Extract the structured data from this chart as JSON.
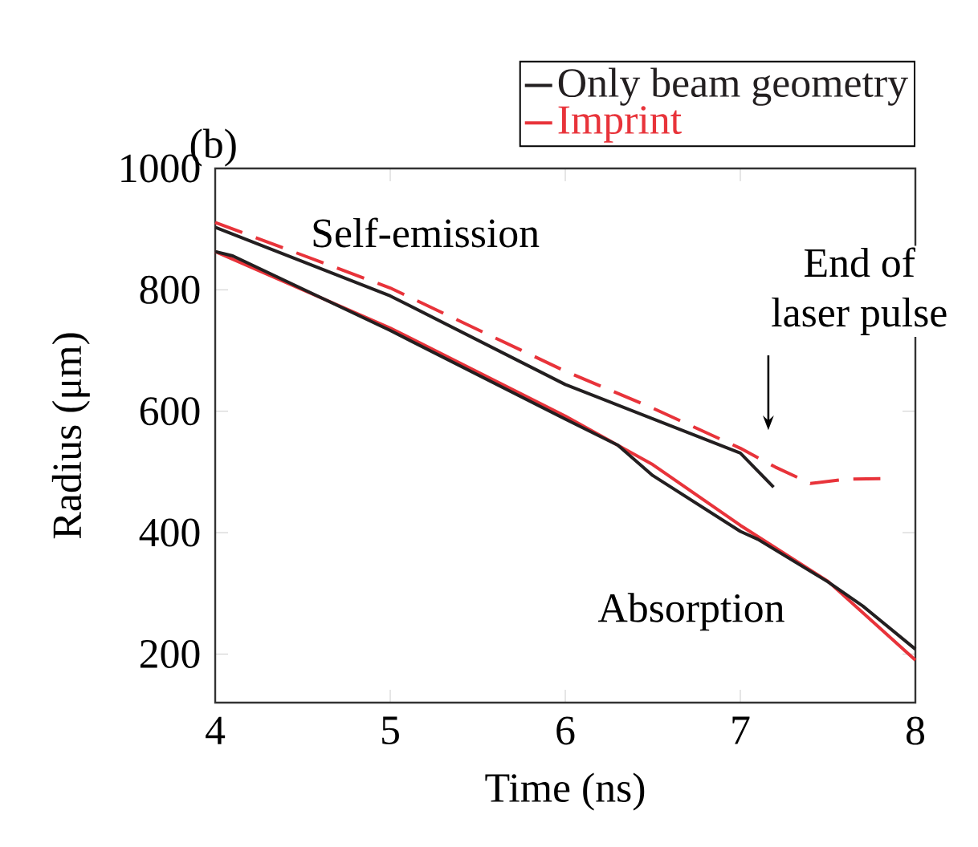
{
  "chart_data": {
    "type": "line",
    "title": "(b)",
    "xlabel": "Time (ns)",
    "ylabel": "Radius (μm)",
    "xlim": [
      4,
      8
    ],
    "ylim": [
      120,
      1000
    ],
    "xticks": [
      4,
      5,
      6,
      7,
      8
    ],
    "yticks": [
      200,
      400,
      600,
      800,
      1000
    ],
    "grid": false,
    "legend": "top right",
    "series": [
      {
        "name": "Only beam geometry",
        "color": "#231f20",
        "line_style": "solid",
        "x": [
          4,
          5,
          6,
          7,
          7.19
        ],
        "values": [
          903,
          790,
          644,
          531,
          475
        ]
      },
      {
        "name": "Imprint",
        "color": "#e8333a",
        "line_style": "dashed",
        "x": [
          4,
          5,
          6,
          6.5,
          7,
          7.2,
          7.4,
          7.6,
          7.8
        ],
        "values": [
          911,
          803,
          666,
          605,
          539,
          508,
          481,
          488,
          489
        ]
      },
      {
        "color": "#e8333a",
        "line_style": "solid",
        "x": [
          4,
          5,
          6,
          6.5,
          7,
          7.5,
          8
        ],
        "values": [
          863,
          737,
          592,
          512,
          412,
          320,
          190
        ]
      },
      {
        "color": "#231f20",
        "line_style": "solid",
        "x": [
          4,
          4.1,
          5,
          6,
          6.3,
          6.5,
          7,
          7.1,
          7.5,
          7.7,
          8
        ],
        "values": [
          863,
          856,
          733,
          587,
          544,
          494,
          402,
          389,
          319,
          279,
          208
        ]
      }
    ],
    "annotations": [
      "Self-emission",
      "Absorption",
      "End of laser pulse"
    ]
  }
}
